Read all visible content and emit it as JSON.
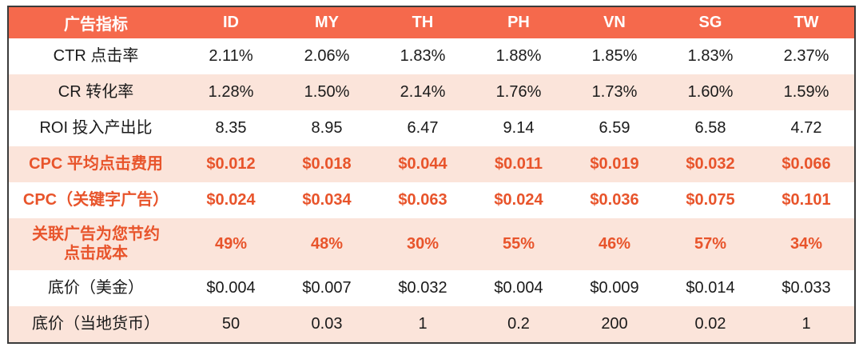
{
  "colors": {
    "header_bg": "#f5694c",
    "header_text": "#ffffff",
    "row_tint_bg": "#fbe4da",
    "row_plain_bg": "#ffffff",
    "accent_text": "#e8542b",
    "body_text": "#1a1a1a",
    "table_border": "#3b3b3b"
  },
  "table": {
    "header": {
      "label_col": "广告指标",
      "columns": [
        "ID",
        "MY",
        "TH",
        "PH",
        "VN",
        "SG",
        "TW"
      ]
    },
    "rows": [
      {
        "label": "CTR 点击率",
        "values": [
          "2.11%",
          "2.06%",
          "1.83%",
          "1.88%",
          "1.85%",
          "1.83%",
          "2.37%"
        ],
        "tint": false,
        "highlight": false,
        "tall": false
      },
      {
        "label": "CR 转化率",
        "values": [
          "1.28%",
          "1.50%",
          "2.14%",
          "1.76%",
          "1.73%",
          "1.60%",
          "1.59%"
        ],
        "tint": true,
        "highlight": false,
        "tall": false
      },
      {
        "label": "ROI 投入产出比",
        "values": [
          "8.35",
          "8.95",
          "6.47",
          "9.14",
          "6.59",
          "6.58",
          "4.72"
        ],
        "tint": false,
        "highlight": false,
        "tall": false
      },
      {
        "label": "CPC 平均点击费用",
        "values": [
          "$0.012",
          "$0.018",
          "$0.044",
          "$0.011",
          "$0.019",
          "$0.032",
          "$0.066"
        ],
        "tint": true,
        "highlight": true,
        "tall": false
      },
      {
        "label": "CPC（关键字广告）",
        "values": [
          "$0.024",
          "$0.034",
          "$0.063",
          "$0.024",
          "$0.036",
          "$0.075",
          "$0.101"
        ],
        "tint": false,
        "highlight": true,
        "tall": false
      },
      {
        "label": "关联广告为您节约\n点击成本",
        "values": [
          "49%",
          "48%",
          "30%",
          "55%",
          "46%",
          "57%",
          "34%"
        ],
        "tint": true,
        "highlight": true,
        "tall": true
      },
      {
        "label": "底价（美金）",
        "values": [
          "$0.004",
          "$0.007",
          "$0.032",
          "$0.004",
          "$0.009",
          "$0.014",
          "$0.033"
        ],
        "tint": false,
        "highlight": false,
        "tall": false
      },
      {
        "label": "底价（当地货币）",
        "values": [
          "50",
          "0.03",
          "1",
          "0.2",
          "200",
          "0.02",
          "1"
        ],
        "tint": true,
        "highlight": false,
        "tall": false
      }
    ]
  },
  "chart_data": {
    "type": "table",
    "title": "广告指标",
    "columns": [
      "广告指标",
      "ID",
      "MY",
      "TH",
      "PH",
      "VN",
      "SG",
      "TW"
    ],
    "rows": [
      [
        "CTR 点击率",
        "2.11%",
        "2.06%",
        "1.83%",
        "1.88%",
        "1.85%",
        "1.83%",
        "2.37%"
      ],
      [
        "CR 转化率",
        "1.28%",
        "1.50%",
        "2.14%",
        "1.76%",
        "1.73%",
        "1.60%",
        "1.59%"
      ],
      [
        "ROI 投入产出比",
        "8.35",
        "8.95",
        "6.47",
        "9.14",
        "6.59",
        "6.58",
        "4.72"
      ],
      [
        "CPC 平均点击费用",
        "$0.012",
        "$0.018",
        "$0.044",
        "$0.011",
        "$0.019",
        "$0.032",
        "$0.066"
      ],
      [
        "CPC（关键字广告）",
        "$0.024",
        "$0.034",
        "$0.063",
        "$0.024",
        "$0.036",
        "$0.075",
        "$0.101"
      ],
      [
        "关联广告为您节约点击成本",
        "49%",
        "48%",
        "30%",
        "55%",
        "46%",
        "57%",
        "34%"
      ],
      [
        "底价（美金）",
        "$0.004",
        "$0.007",
        "$0.032",
        "$0.004",
        "$0.009",
        "$0.014",
        "$0.033"
      ],
      [
        "底价（当地货币）",
        "50",
        "0.03",
        "1",
        "0.2",
        "200",
        "0.02",
        "1"
      ]
    ],
    "highlighted_rows": [
      "CPC 平均点击费用",
      "CPC（关键字广告）",
      "关联广告为您节约点击成本"
    ],
    "layout": "header row orange, body rows alternate white/peach, highlighted rows in bold orange text"
  }
}
